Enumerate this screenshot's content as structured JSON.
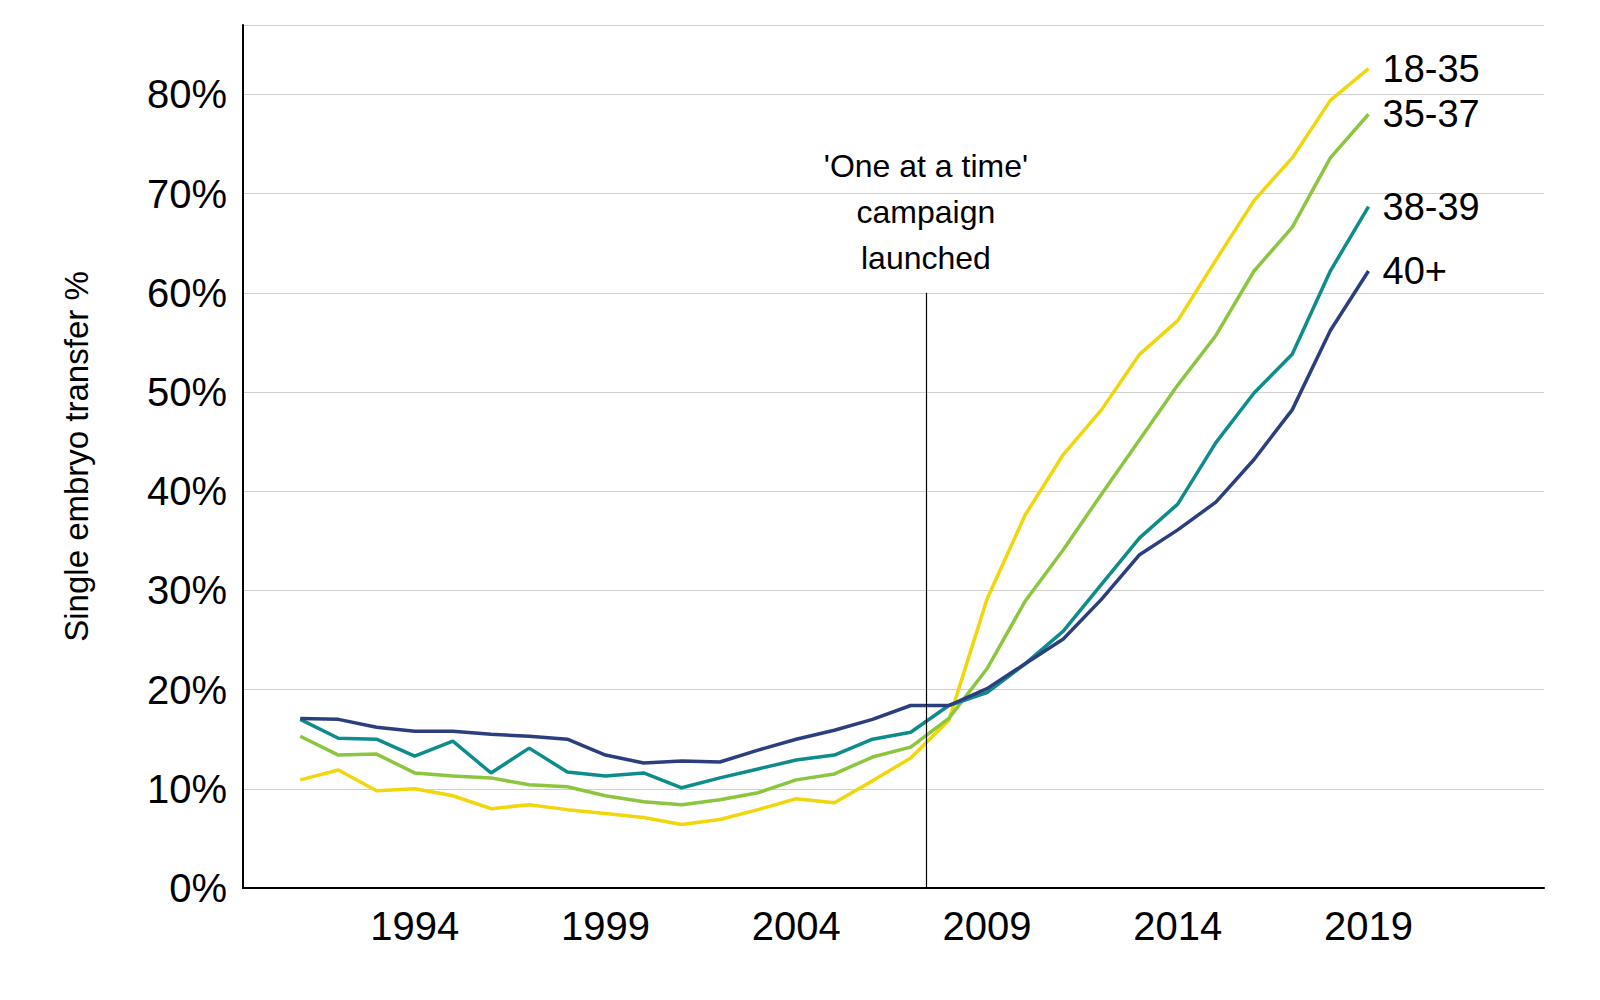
{
  "chart_data": {
    "type": "line",
    "y_label": "Single embryo transfer %",
    "annotation": {
      "lines": [
        "'One at a time'",
        "campaign",
        "launched"
      ],
      "x": 2007.4,
      "y_from": 0,
      "y_to": 60
    },
    "x": [
      1991,
      1992,
      1993,
      1994,
      1995,
      1996,
      1997,
      1998,
      1999,
      2000,
      2001,
      2002,
      2003,
      2004,
      2005,
      2006,
      2007,
      2008,
      2009,
      2010,
      2011,
      2012,
      2013,
      2014,
      2015,
      2016,
      2017,
      2018,
      2019
    ],
    "series": [
      {
        "name": "18-35",
        "color": "#f2d60c",
        "values": [
          10.9,
          11.9,
          9.8,
          10,
          9.3,
          8,
          8.4,
          7.9,
          7.5,
          7.1,
          6.4,
          6.9,
          7.9,
          9,
          8.6,
          10.8,
          13.1,
          16.9,
          29.1,
          37.6,
          43.7,
          48.2,
          53.8,
          57.2,
          63.3,
          69.3,
          73.6,
          79.4,
          82.6
        ]
      },
      {
        "name": "35-37",
        "color": "#8cc63f",
        "values": [
          15.3,
          13.4,
          13.5,
          11.6,
          11.3,
          11.1,
          10.4,
          10.2,
          9.3,
          8.7,
          8.4,
          8.9,
          9.6,
          10.9,
          11.5,
          13.2,
          14.2,
          17.1,
          22.1,
          28.9,
          34.1,
          39.7,
          45.2,
          50.7,
          55.7,
          62.2,
          66.6,
          73.6,
          78
        ]
      },
      {
        "name": "38-39",
        "color": "#0e8c8c",
        "values": [
          17,
          15.1,
          15,
          13.3,
          14.8,
          11.6,
          14.1,
          11.7,
          11.3,
          11.6,
          10.1,
          11.1,
          12,
          12.9,
          13.4,
          15,
          15.7,
          18.4,
          19.7,
          22.6,
          25.9,
          30.6,
          35.3,
          38.7,
          44.9,
          49.9,
          53.8,
          62.2,
          68.7
        ]
      },
      {
        "name": "40+",
        "color": "#2b3f7e",
        "values": [
          17.1,
          17,
          16.2,
          15.8,
          15.8,
          15.5,
          15.3,
          15,
          13.4,
          12.6,
          12.8,
          12.7,
          13.9,
          15,
          15.9,
          17,
          18.4,
          18.4,
          20.1,
          22.6,
          25.1,
          29.1,
          33.6,
          36.1,
          38.9,
          43.2,
          48.2,
          56.2,
          62.2
        ]
      }
    ],
    "xlim": [
      1989.5,
      2023.6
    ],
    "xticks": [
      1994,
      1999,
      2004,
      2009,
      2014,
      2019
    ],
    "ylim": [
      0,
      87
    ],
    "yticks": [
      {
        "value": 0,
        "label": "0%"
      },
      {
        "value": 10,
        "label": "10%"
      },
      {
        "value": 20,
        "label": "20%"
      },
      {
        "value": 30,
        "label": "30%"
      },
      {
        "value": 40,
        "label": "40%"
      },
      {
        "value": 50,
        "label": "50%"
      },
      {
        "value": 60,
        "label": "60%"
      },
      {
        "value": 70,
        "label": "70%"
      },
      {
        "value": 80,
        "label": "80%"
      }
    ],
    "grid": true
  }
}
